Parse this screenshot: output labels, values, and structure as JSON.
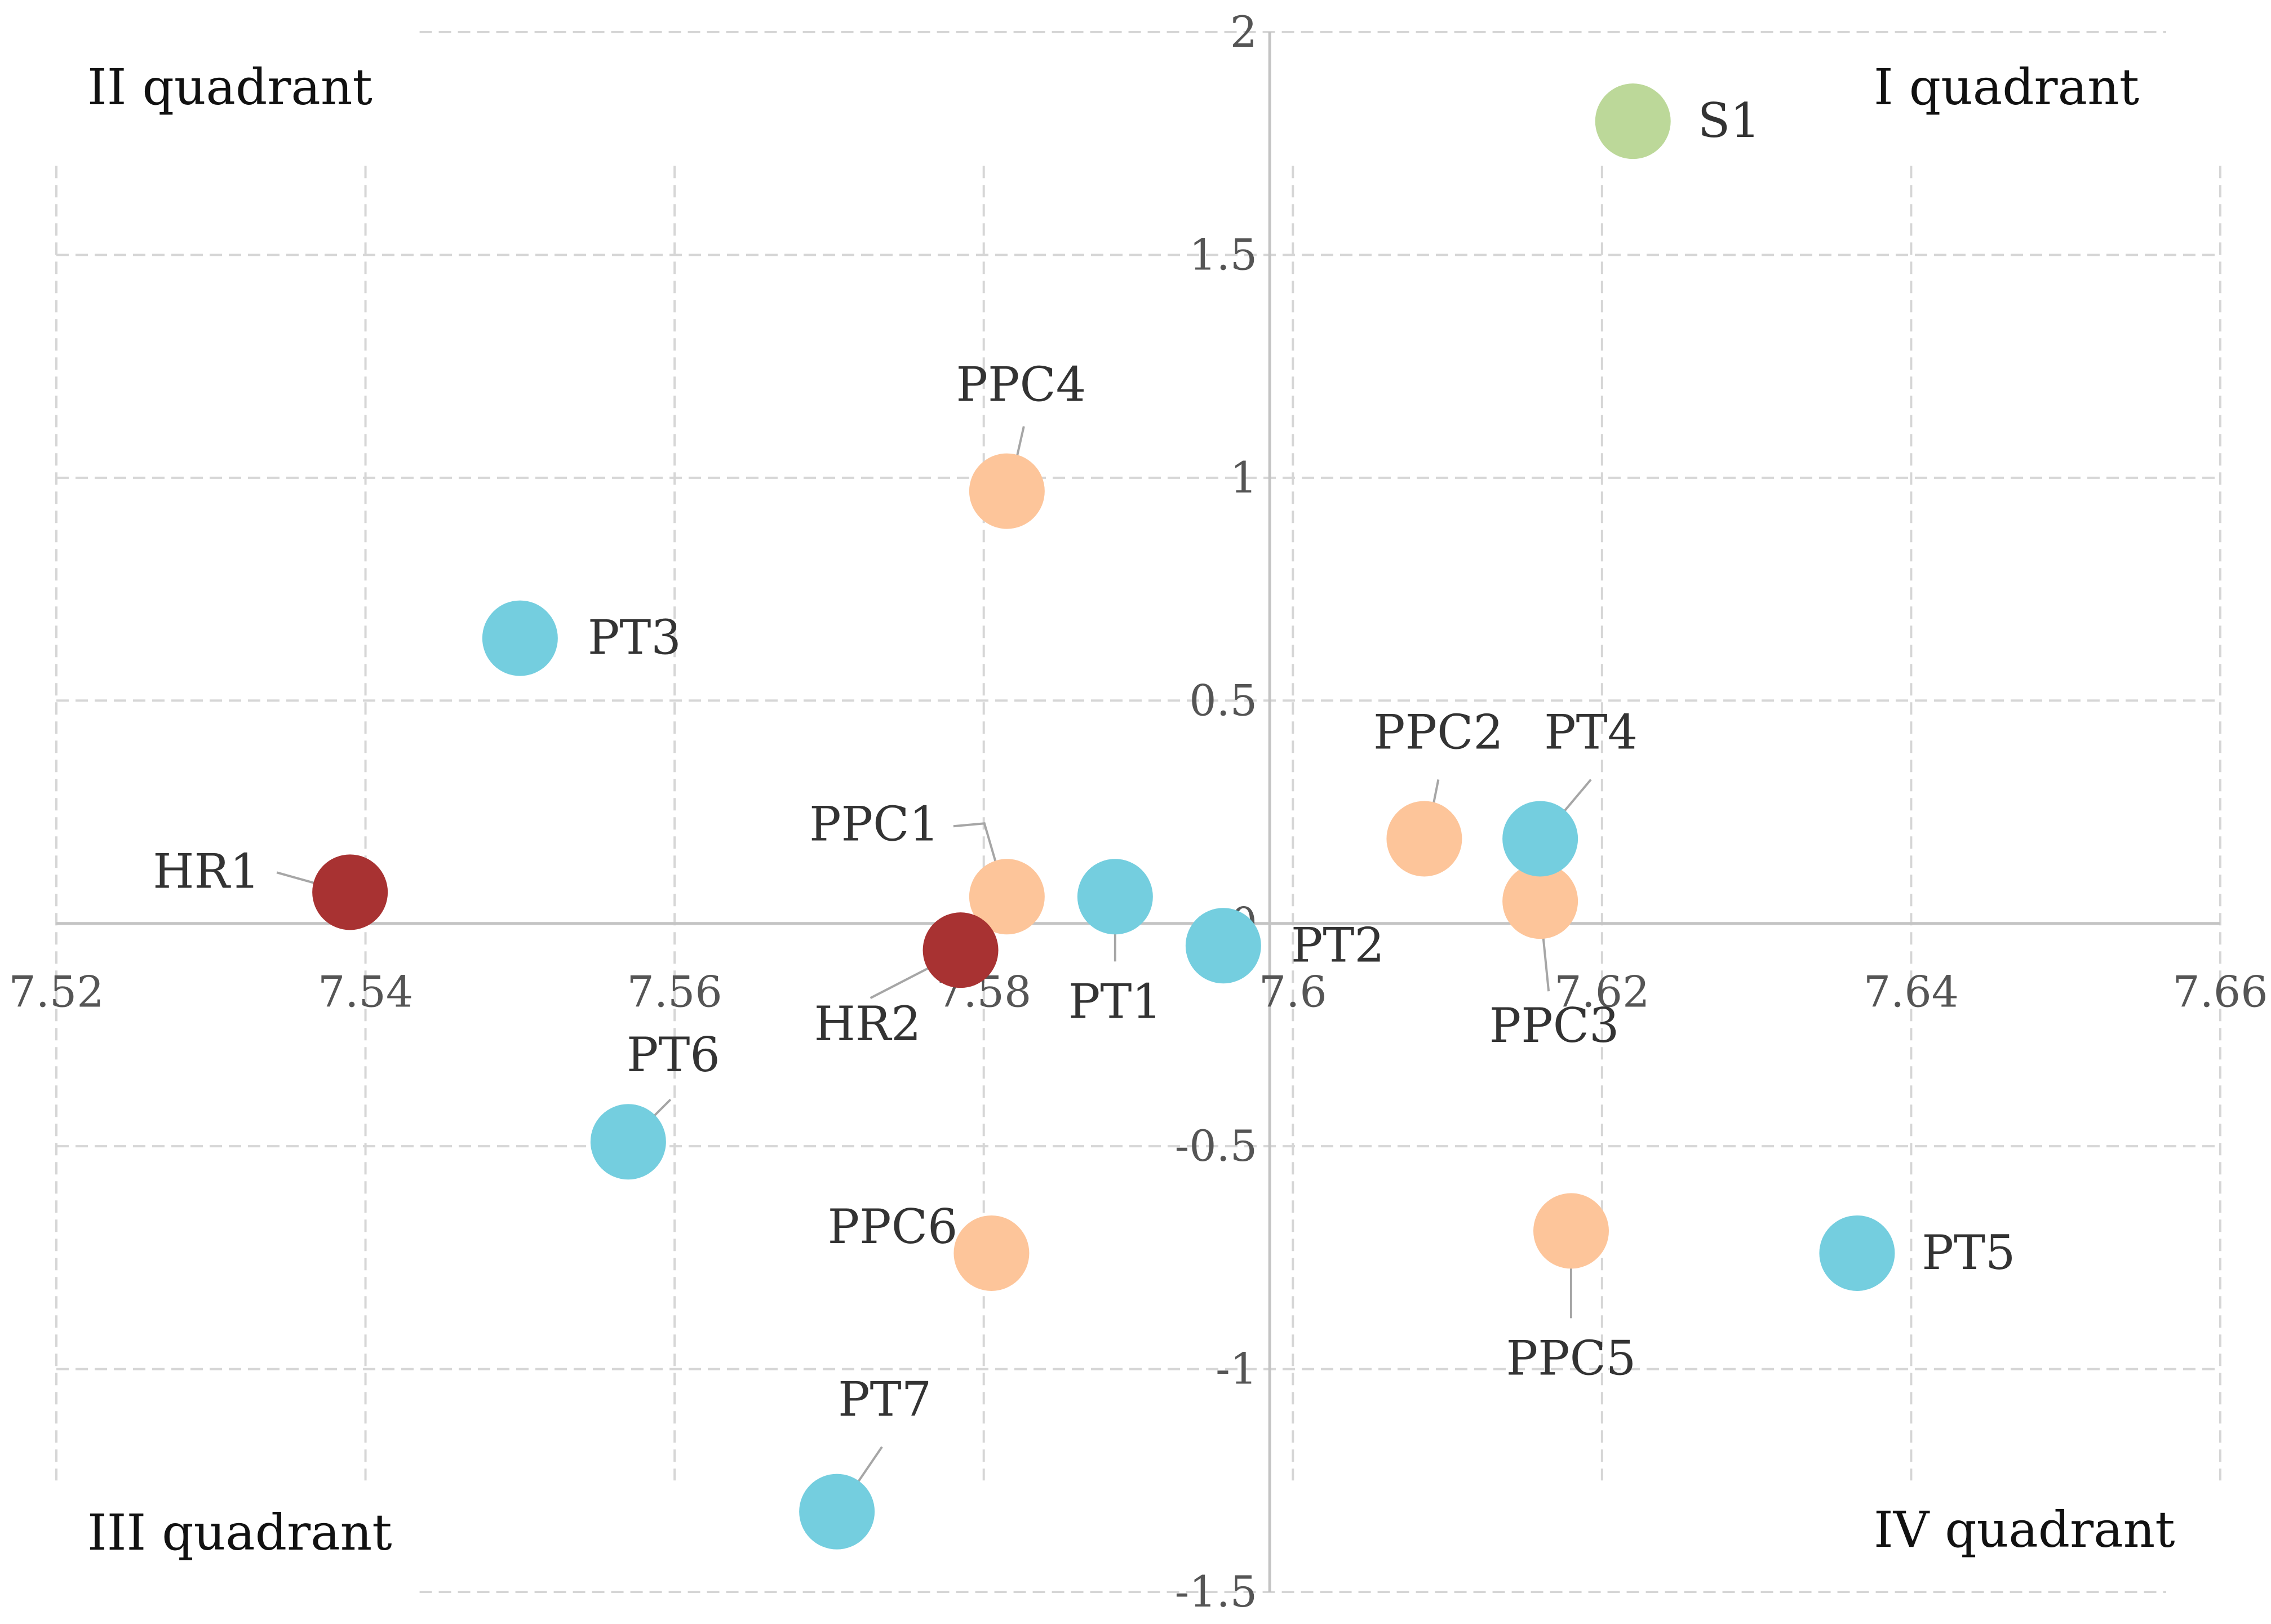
{
  "chart_data": {
    "type": "scatter",
    "title": "",
    "xlabel": "",
    "ylabel": "",
    "xlim": [
      7.52,
      7.66
    ],
    "ylim": [
      -1.5,
      2
    ],
    "grid": true,
    "x_ticks": [
      {
        "value": 7.52,
        "label": "7.52"
      },
      {
        "value": 7.54,
        "label": "7.54"
      },
      {
        "value": 7.56,
        "label": "7.56"
      },
      {
        "value": 7.58,
        "label": "7.58"
      },
      {
        "value": 7.6,
        "label": "7.6"
      },
      {
        "value": 7.62,
        "label": "7.62"
      },
      {
        "value": 7.64,
        "label": "7.64"
      },
      {
        "value": 7.66,
        "label": "7.66"
      }
    ],
    "y_ticks": [
      {
        "value": 2,
        "label": "2"
      },
      {
        "value": 1.5,
        "label": "1.5"
      },
      {
        "value": 1,
        "label": "1"
      },
      {
        "value": 0.5,
        "label": "0.5"
      },
      {
        "value": 0,
        "label": "0"
      },
      {
        "value": -0.5,
        "label": "-0.5"
      },
      {
        "value": -1,
        "label": "-1"
      },
      {
        "value": -1.5,
        "label": "-1.5"
      }
    ],
    "quadrants": {
      "q1": "I quadrant",
      "q2": "II quadrant",
      "q3": "III quadrant",
      "q4": "IV quadrant"
    },
    "series": [
      {
        "name": "S",
        "color": "#bcd899",
        "points": [
          {
            "label": "S1",
            "x": 7.622,
            "y": 1.8
          }
        ]
      },
      {
        "name": "PPC",
        "color": "#fdc59a",
        "points": [
          {
            "label": "PPC1",
            "x": 7.5815,
            "y": 0.06
          },
          {
            "label": "PPC2",
            "x": 7.6085,
            "y": 0.19
          },
          {
            "label": "PPC3",
            "x": 7.616,
            "y": 0.05
          },
          {
            "label": "PPC4",
            "x": 7.5815,
            "y": 0.97
          },
          {
            "label": "PPC5",
            "x": 7.618,
            "y": -0.69
          },
          {
            "label": "PPC6",
            "x": 7.5805,
            "y": -0.74
          }
        ]
      },
      {
        "name": "PT",
        "color": "#74cedf",
        "points": [
          {
            "label": "PT1",
            "x": 7.5885,
            "y": 0.06
          },
          {
            "label": "PT2",
            "x": 7.5955,
            "y": -0.05
          },
          {
            "label": "PT3",
            "x": 7.55,
            "y": 0.64
          },
          {
            "label": "PT4",
            "x": 7.616,
            "y": 0.19
          },
          {
            "label": "PT5",
            "x": 7.6365,
            "y": -0.74
          },
          {
            "label": "PT6",
            "x": 7.557,
            "y": -0.49
          },
          {
            "label": "PT7",
            "x": 7.5705,
            "y": -1.32
          }
        ]
      },
      {
        "name": "HR",
        "color": "#a83232",
        "points": [
          {
            "label": "HR1",
            "x": 7.539,
            "y": 0.07
          },
          {
            "label": "HR2",
            "x": 7.5785,
            "y": -0.06
          }
        ]
      }
    ]
  }
}
